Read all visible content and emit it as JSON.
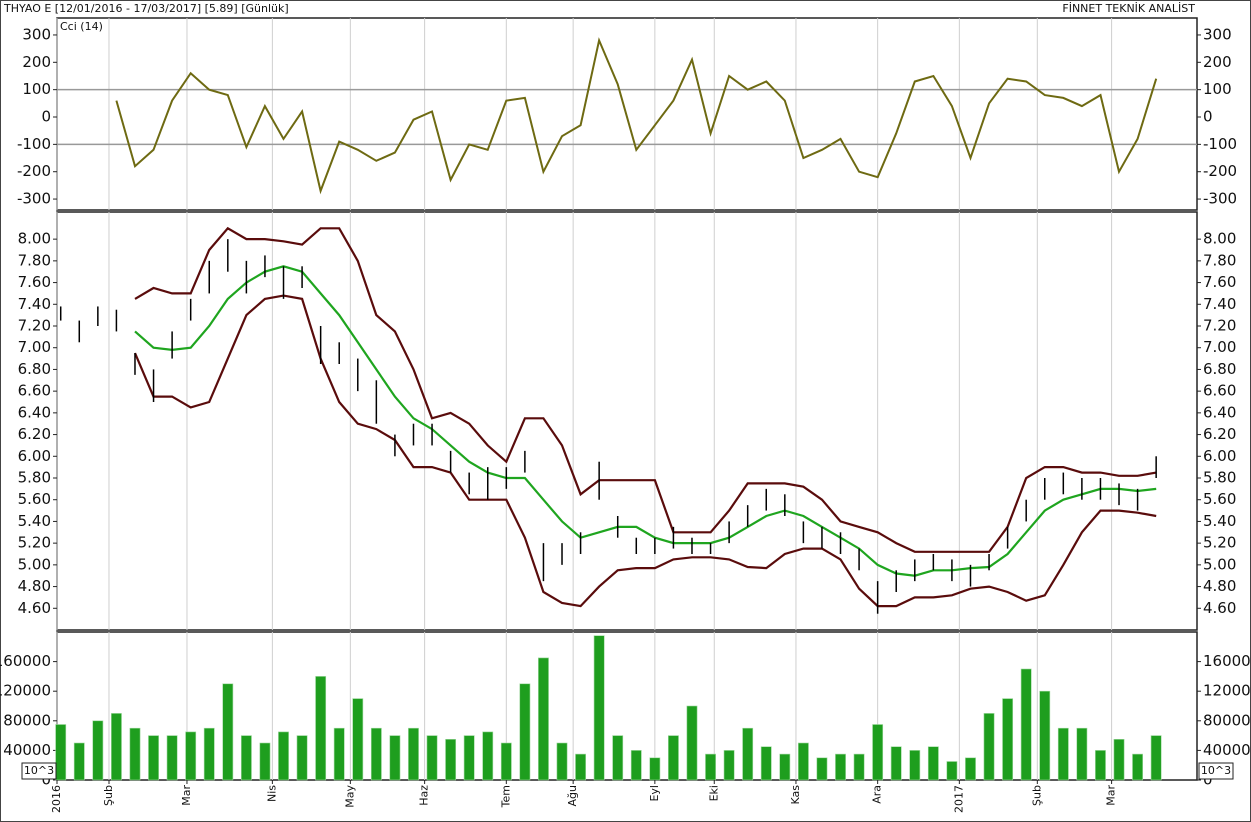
{
  "header": {
    "title": "THYAO E  [12/01/2016 - 17/03/2017]  [5.89]  [Günlük]",
    "brand": "FİNNET TEKNİK ANALİST"
  },
  "chart_data": [
    {
      "type": "line",
      "title": "Cci (14)",
      "color": "#6e6a12",
      "x": [
        0,
        5,
        10,
        15,
        20,
        25,
        30,
        35,
        40,
        45,
        50,
        55,
        60,
        65,
        70,
        75,
        80,
        85,
        90,
        95,
        100,
        105,
        110,
        115,
        120,
        125,
        130,
        135,
        140,
        145,
        150,
        155,
        160,
        165,
        170,
        175,
        180,
        185,
        190,
        195,
        200,
        205,
        210,
        215,
        220,
        225,
        230,
        235,
        240,
        245,
        250,
        255,
        260,
        265,
        270,
        275,
        280,
        285,
        290,
        295
      ],
      "values": [
        null,
        null,
        null,
        60,
        -180,
        -120,
        60,
        160,
        100,
        80,
        -110,
        40,
        -80,
        20,
        -270,
        -90,
        -120,
        -160,
        -130,
        -10,
        20,
        -230,
        -100,
        -120,
        60,
        70,
        -200,
        -70,
        -30,
        280,
        120,
        -120,
        -30,
        60,
        210,
        -60,
        150,
        100,
        130,
        60,
        -150,
        -120,
        -80,
        -200,
        -220,
        -60,
        130,
        150,
        40,
        -150,
        50,
        140,
        130,
        80,
        70,
        40,
        80,
        -200,
        -80,
        140
      ],
      "ylim": [
        -340,
        362
      ],
      "yticks": [
        -300,
        -200,
        -100,
        0,
        100,
        200,
        300
      ],
      "hlines": [
        -100,
        100
      ]
    },
    {
      "type": "stock",
      "bar_color": "#000000",
      "x": [
        0,
        5,
        10,
        15,
        20,
        25,
        30,
        35,
        40,
        45,
        50,
        55,
        60,
        65,
        70,
        75,
        80,
        85,
        90,
        95,
        100,
        105,
        110,
        115,
        120,
        125,
        130,
        135,
        140,
        145,
        150,
        155,
        160,
        165,
        170,
        175,
        180,
        185,
        190,
        195,
        200,
        205,
        210,
        215,
        220,
        225,
        230,
        235,
        240,
        245,
        250,
        255,
        260,
        265,
        270,
        275,
        280,
        285,
        290,
        295
      ],
      "high": [
        7.38,
        7.25,
        7.38,
        7.35,
        6.95,
        6.8,
        7.15,
        7.45,
        7.8,
        8.0,
        7.8,
        7.85,
        7.75,
        7.75,
        7.2,
        7.05,
        6.9,
        6.7,
        6.2,
        6.3,
        6.3,
        6.05,
        5.85,
        5.9,
        5.9,
        6.05,
        5.2,
        5.2,
        5.3,
        5.95,
        5.45,
        5.25,
        5.25,
        5.35,
        5.25,
        5.2,
        5.4,
        5.55,
        5.7,
        5.65,
        5.4,
        5.35,
        5.3,
        5.15,
        4.85,
        4.95,
        5.05,
        5.1,
        5.05,
        5.0,
        5.1,
        5.35,
        5.6,
        5.8,
        5.85,
        5.8,
        5.8,
        5.75,
        5.7,
        6.0
      ],
      "low": [
        7.25,
        7.05,
        7.2,
        7.15,
        6.75,
        6.5,
        6.9,
        7.25,
        7.5,
        7.7,
        7.5,
        7.65,
        7.45,
        7.55,
        6.85,
        6.85,
        6.6,
        6.3,
        6.0,
        6.1,
        6.1,
        5.85,
        5.65,
        5.6,
        5.7,
        5.85,
        4.85,
        5.0,
        5.1,
        5.6,
        5.25,
        5.1,
        5.1,
        5.15,
        5.1,
        5.1,
        5.2,
        5.35,
        5.5,
        5.45,
        5.2,
        5.15,
        5.1,
        4.95,
        4.55,
        4.75,
        4.85,
        4.95,
        4.85,
        4.8,
        4.95,
        5.15,
        5.4,
        5.6,
        5.65,
        5.6,
        5.6,
        5.55,
        5.5,
        5.8
      ],
      "bands": [
        {
          "color": "#5a0c0c",
          "values": [
            null,
            null,
            null,
            null,
            7.45,
            7.55,
            7.5,
            7.5,
            7.9,
            8.1,
            8.0,
            8.0,
            7.98,
            7.95,
            8.1,
            8.1,
            7.8,
            7.3,
            7.15,
            6.8,
            6.35,
            6.4,
            6.3,
            6.1,
            5.95,
            6.35,
            6.35,
            6.1,
            5.65,
            5.78,
            5.78,
            5.78,
            5.78,
            5.3,
            5.3,
            5.3,
            5.5,
            5.75,
            5.75,
            5.75,
            5.72,
            5.6,
            5.4,
            5.35,
            5.3,
            5.2,
            5.12,
            5.12,
            5.12,
            5.12,
            5.12,
            5.35,
            5.8,
            5.9,
            5.9,
            5.85,
            5.85,
            5.82,
            5.82,
            5.85
          ]
        },
        {
          "color": "#1fa51f",
          "values": [
            null,
            null,
            null,
            null,
            7.15,
            7.0,
            6.98,
            7.0,
            7.2,
            7.45,
            7.6,
            7.7,
            7.75,
            7.7,
            7.5,
            7.3,
            7.05,
            6.8,
            6.55,
            6.35,
            6.25,
            6.1,
            5.95,
            5.85,
            5.8,
            5.8,
            5.6,
            5.4,
            5.25,
            5.3,
            5.35,
            5.35,
            5.25,
            5.2,
            5.2,
            5.2,
            5.25,
            5.35,
            5.45,
            5.5,
            5.45,
            5.35,
            5.25,
            5.15,
            5.0,
            4.92,
            4.9,
            4.95,
            4.95,
            4.97,
            4.98,
            5.1,
            5.3,
            5.5,
            5.6,
            5.65,
            5.7,
            5.7,
            5.68,
            5.7
          ]
        },
        {
          "color": "#5a0c0c",
          "values": [
            null,
            null,
            null,
            null,
            6.95,
            6.55,
            6.55,
            6.45,
            6.5,
            6.9,
            7.3,
            7.45,
            7.48,
            7.45,
            6.9,
            6.5,
            6.3,
            6.25,
            6.15,
            5.9,
            5.9,
            5.85,
            5.6,
            5.6,
            5.6,
            5.25,
            4.75,
            4.65,
            4.62,
            4.8,
            4.95,
            4.97,
            4.97,
            5.05,
            5.07,
            5.07,
            5.05,
            4.98,
            4.97,
            5.1,
            5.15,
            5.15,
            5.05,
            4.78,
            4.62,
            4.62,
            4.7,
            4.7,
            4.72,
            4.78,
            4.8,
            4.75,
            4.67,
            4.72,
            5.0,
            5.3,
            5.5,
            5.5,
            5.48,
            5.45
          ]
        }
      ],
      "ylim": [
        4.4,
        8.25
      ],
      "yticks": [
        {
          "value": 4.6,
          "label": "4.60"
        },
        {
          "value": 4.8,
          "label": "4.80"
        },
        {
          "value": 5.0,
          "label": "5.00"
        },
        {
          "value": 5.2,
          "label": "5.20"
        },
        {
          "value": 5.4,
          "label": "5.40"
        },
        {
          "value": 5.6,
          "label": "5.60"
        },
        {
          "value": 5.8,
          "label": "5.80"
        },
        {
          "value": 6.0,
          "label": "6.00"
        },
        {
          "value": 6.2,
          "label": "6.20"
        },
        {
          "value": 6.4,
          "label": "6.40"
        },
        {
          "value": 6.6,
          "label": "6.60"
        },
        {
          "value": 6.8,
          "label": "6.80"
        },
        {
          "value": 7.0,
          "label": "7.00"
        },
        {
          "value": 7.2,
          "label": "7.20"
        },
        {
          "value": 7.4,
          "label": "7.40"
        },
        {
          "value": 7.6,
          "label": "7.60"
        },
        {
          "value": 7.8,
          "label": "7.80"
        },
        {
          "value": 8.0,
          "label": "8.00"
        }
      ]
    },
    {
      "type": "bar",
      "color": "#1e9e1e",
      "unit_label": "10^3",
      "x": [
        0,
        5,
        10,
        15,
        20,
        25,
        30,
        35,
        40,
        45,
        50,
        55,
        60,
        65,
        70,
        75,
        80,
        85,
        90,
        95,
        100,
        105,
        110,
        115,
        120,
        125,
        130,
        135,
        140,
        145,
        150,
        155,
        160,
        165,
        170,
        175,
        180,
        185,
        190,
        195,
        200,
        205,
        210,
        215,
        220,
        225,
        230,
        235,
        240,
        245,
        250,
        255,
        260,
        265,
        270,
        275,
        280,
        285,
        290,
        295
      ],
      "values": [
        75000,
        50000,
        80000,
        90000,
        70000,
        60000,
        60000,
        65000,
        70000,
        130000,
        60000,
        50000,
        65000,
        60000,
        140000,
        70000,
        110000,
        70000,
        60000,
        70000,
        60000,
        55000,
        60000,
        65000,
        50000,
        130000,
        165000,
        50000,
        35000,
        195000,
        60000,
        40000,
        30000,
        60000,
        100000,
        35000,
        40000,
        70000,
        45000,
        35000,
        50000,
        30000,
        35000,
        35000,
        75000,
        45000,
        40000,
        45000,
        25000,
        30000,
        90000,
        110000,
        150000,
        120000,
        70000,
        70000,
        40000,
        55000,
        35000,
        60000
      ],
      "ylim": [
        0,
        200000
      ],
      "yticks": [
        0,
        40000,
        80000,
        120000,
        160000
      ],
      "xlim": [
        -1,
        306
      ],
      "xticks": [
        {
          "value": -1,
          "label": "2016"
        },
        {
          "value": 13,
          "label": "Şub"
        },
        {
          "value": 34,
          "label": "Mar"
        },
        {
          "value": 57,
          "label": "Nis"
        },
        {
          "value": 78,
          "label": "May"
        },
        {
          "value": 98,
          "label": "Haz"
        },
        {
          "value": 120,
          "label": "Tem"
        },
        {
          "value": 138,
          "label": "Ağu"
        },
        {
          "value": 160,
          "label": "Eyl"
        },
        {
          "value": 176,
          "label": "Eki"
        },
        {
          "value": 198,
          "label": "Kas"
        },
        {
          "value": 220,
          "label": "Ara"
        },
        {
          "value": 242,
          "label": "2017"
        },
        {
          "value": 263,
          "label": "Şub"
        },
        {
          "value": 283,
          "label": "Mar"
        }
      ]
    }
  ]
}
